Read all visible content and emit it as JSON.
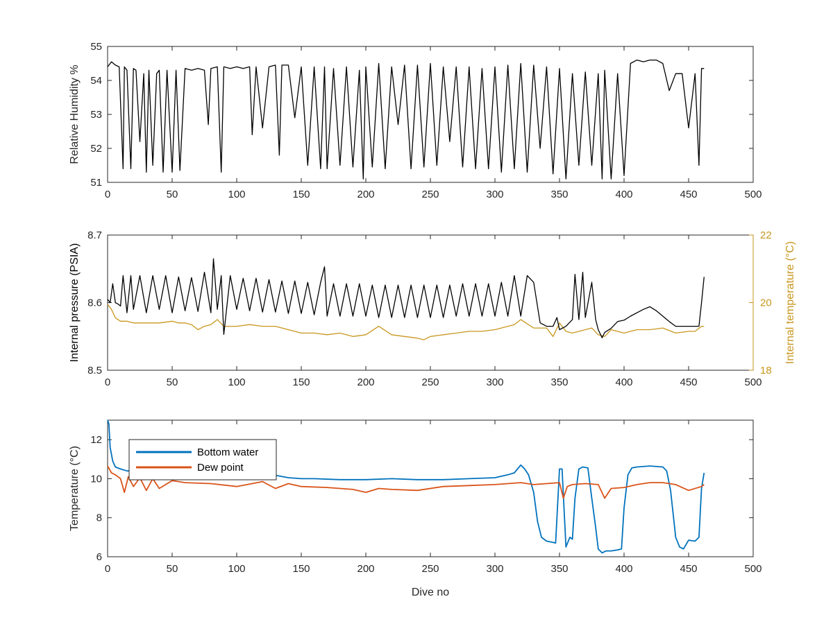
{
  "chart_data": [
    {
      "type": "line",
      "title": "",
      "xlabel": "",
      "ylabel": "Relative Humidity %",
      "xlim": [
        0,
        500
      ],
      "ylim": [
        51,
        55
      ],
      "xticks": [
        0,
        50,
        100,
        150,
        200,
        250,
        300,
        350,
        400,
        450,
        500
      ],
      "yticks": [
        51,
        52,
        53,
        54,
        55
      ],
      "grid": false,
      "series": [
        {
          "color": "#000000",
          "x": [
            0,
            3,
            6,
            9,
            12,
            13,
            15,
            18,
            20,
            22,
            25,
            28,
            30,
            32,
            35,
            38,
            40,
            43,
            46,
            50,
            53,
            56,
            60,
            65,
            70,
            75,
            78,
            80,
            85,
            88,
            90,
            95,
            100,
            105,
            110,
            112,
            115,
            120,
            125,
            130,
            133,
            135,
            140,
            145,
            150,
            155,
            160,
            165,
            168,
            170,
            175,
            180,
            185,
            190,
            195,
            198,
            200,
            205,
            210,
            215,
            220,
            225,
            230,
            235,
            240,
            245,
            250,
            255,
            260,
            265,
            270,
            275,
            280,
            285,
            290,
            295,
            300,
            305,
            310,
            315,
            320,
            325,
            330,
            335,
            340,
            345,
            350,
            355,
            360,
            365,
            370,
            375,
            380,
            383,
            385,
            390,
            395,
            400,
            405,
            410,
            415,
            420,
            425,
            430,
            435,
            440,
            445,
            450,
            455,
            458,
            460,
            462
          ],
          "y": [
            54.4,
            54.55,
            54.45,
            54.4,
            51.4,
            54.4,
            54.3,
            51.4,
            54.35,
            54.3,
            52.2,
            54.2,
            51.3,
            54.3,
            51.5,
            54.2,
            54.3,
            51.3,
            54.3,
            51.3,
            54.3,
            51.35,
            54.35,
            54.3,
            54.35,
            54.3,
            52.7,
            54.35,
            54.4,
            51.3,
            54.4,
            54.35,
            54.4,
            54.35,
            54.4,
            52.4,
            54.4,
            52.6,
            54.4,
            54.45,
            51.8,
            54.45,
            54.45,
            52.9,
            54.4,
            51.5,
            54.4,
            51.4,
            54.4,
            51.4,
            54.35,
            51.5,
            54.4,
            51.45,
            54.3,
            51.1,
            54.4,
            51.45,
            54.5,
            51.4,
            54.4,
            52.7,
            54.45,
            51.4,
            54.45,
            51.45,
            54.5,
            51.5,
            54.4,
            52.2,
            54.4,
            51.45,
            54.4,
            51.4,
            54.35,
            51.4,
            54.4,
            51.3,
            54.45,
            51.4,
            54.5,
            51.3,
            54.45,
            52.0,
            54.4,
            51.25,
            54.35,
            51.1,
            54.2,
            51.5,
            54.25,
            51.5,
            54.2,
            51.1,
            54.3,
            51.1,
            54.2,
            51.2,
            54.5,
            54.6,
            54.55,
            54.6,
            54.6,
            54.5,
            53.7,
            54.2,
            54.2,
            52.6,
            54.2,
            51.5,
            54.35,
            54.35
          ]
        }
      ]
    },
    {
      "type": "line",
      "title": "",
      "xlabel": "",
      "ylabel": "Internal pressure (PSIA)",
      "ylabel_right": "Internal temperature (°C)",
      "xlim": [
        0,
        500
      ],
      "ylim": [
        8.5,
        8.7
      ],
      "ylim_right": [
        18,
        22
      ],
      "xticks": [
        0,
        50,
        100,
        150,
        200,
        250,
        300,
        350,
        400,
        450,
        500
      ],
      "yticks": [
        8.5,
        8.6,
        8.7
      ],
      "yticks_right": [
        18,
        20,
        22
      ],
      "grid": false,
      "series": [
        {
          "axis": "left",
          "color": "#000000",
          "x": [
            0,
            2,
            4,
            6,
            8,
            10,
            12,
            15,
            18,
            20,
            25,
            30,
            35,
            40,
            45,
            50,
            55,
            60,
            65,
            70,
            75,
            80,
            82,
            85,
            88,
            90,
            95,
            100,
            105,
            110,
            115,
            120,
            125,
            130,
            135,
            140,
            145,
            150,
            155,
            160,
            165,
            168,
            170,
            175,
            180,
            185,
            190,
            195,
            200,
            205,
            210,
            215,
            220,
            225,
            230,
            235,
            240,
            245,
            250,
            255,
            260,
            265,
            270,
            275,
            280,
            285,
            290,
            295,
            300,
            305,
            310,
            315,
            320,
            325,
            330,
            335,
            340,
            345,
            348,
            350,
            355,
            360,
            362,
            365,
            368,
            370,
            375,
            378,
            380,
            383,
            385,
            390,
            395,
            400,
            405,
            410,
            415,
            420,
            425,
            430,
            435,
            440,
            445,
            450,
            455,
            458,
            460,
            462
          ],
          "y": [
            8.605,
            8.6,
            8.628,
            8.6,
            8.598,
            8.595,
            8.64,
            8.585,
            8.64,
            8.59,
            8.64,
            8.585,
            8.64,
            8.59,
            8.64,
            8.585,
            8.638,
            8.588,
            8.637,
            8.587,
            8.645,
            8.585,
            8.665,
            8.59,
            8.64,
            8.553,
            8.64,
            8.59,
            8.636,
            8.588,
            8.636,
            8.586,
            8.634,
            8.586,
            8.632,
            8.584,
            8.632,
            8.584,
            8.63,
            8.582,
            8.63,
            8.653,
            8.58,
            8.628,
            8.58,
            8.628,
            8.58,
            8.628,
            8.58,
            8.626,
            8.578,
            8.626,
            8.578,
            8.626,
            8.578,
            8.626,
            8.578,
            8.626,
            8.578,
            8.626,
            8.578,
            8.626,
            8.58,
            8.628,
            8.58,
            8.628,
            8.58,
            8.628,
            8.58,
            8.63,
            8.58,
            8.64,
            8.58,
            8.64,
            8.63,
            8.57,
            8.565,
            8.565,
            8.578,
            8.56,
            8.565,
            8.575,
            8.642,
            8.575,
            8.645,
            8.578,
            8.63,
            8.575,
            8.56,
            8.548,
            8.556,
            8.562,
            8.572,
            8.574,
            8.58,
            8.585,
            8.59,
            8.594,
            8.588,
            8.58,
            8.572,
            8.565,
            8.565,
            8.565,
            8.565,
            8.565,
            8.6,
            8.638
          ]
        },
        {
          "axis": "right",
          "color": "#C8961E",
          "x": [
            0,
            3,
            6,
            10,
            15,
            20,
            30,
            40,
            50,
            55,
            60,
            65,
            70,
            75,
            80,
            85,
            90,
            95,
            100,
            110,
            120,
            130,
            140,
            150,
            160,
            170,
            180,
            190,
            200,
            210,
            220,
            230,
            240,
            245,
            250,
            260,
            270,
            280,
            290,
            300,
            310,
            315,
            320,
            330,
            340,
            345,
            350,
            355,
            360,
            370,
            375,
            380,
            385,
            390,
            400,
            410,
            420,
            430,
            440,
            450,
            455,
            460,
            462
          ],
          "y": [
            19.95,
            19.8,
            19.55,
            19.45,
            19.45,
            19.4,
            19.4,
            19.4,
            19.45,
            19.4,
            19.4,
            19.35,
            19.2,
            19.3,
            19.35,
            19.5,
            19.3,
            19.3,
            19.3,
            19.35,
            19.3,
            19.3,
            19.2,
            19.1,
            19.1,
            19.05,
            19.1,
            19.0,
            19.05,
            19.3,
            19.05,
            19.0,
            18.95,
            18.9,
            19.0,
            19.05,
            19.1,
            19.15,
            19.15,
            19.2,
            19.3,
            19.35,
            19.5,
            19.25,
            19.25,
            19.0,
            19.4,
            19.15,
            19.1,
            19.2,
            19.25,
            19.05,
            19.0,
            19.2,
            19.1,
            19.2,
            19.2,
            19.25,
            19.1,
            19.15,
            19.15,
            19.3,
            19.3
          ]
        }
      ]
    },
    {
      "type": "line",
      "title": "",
      "xlabel": "Dive no",
      "ylabel": "Temperature (°C)",
      "xlim": [
        0,
        500
      ],
      "ylim": [
        6,
        13
      ],
      "xticks": [
        0,
        50,
        100,
        150,
        200,
        250,
        300,
        350,
        400,
        450,
        500
      ],
      "yticks": [
        6,
        8,
        10,
        12
      ],
      "grid": false,
      "legend": "top-left",
      "series": [
        {
          "name": "Bottom water",
          "color": "#0072BD",
          "x": [
            0,
            1,
            2,
            4,
            6,
            10,
            15,
            20,
            30,
            40,
            50,
            60,
            80,
            100,
            120,
            140,
            150,
            160,
            180,
            200,
            220,
            240,
            260,
            280,
            300,
            310,
            315,
            320,
            323,
            326,
            330,
            333,
            336,
            340,
            344,
            347,
            350,
            352,
            355,
            358,
            360,
            362,
            365,
            368,
            372,
            375,
            378,
            380,
            383,
            386,
            390,
            395,
            398,
            400,
            403,
            406,
            410,
            420,
            430,
            433,
            436,
            438,
            440,
            443,
            446,
            450,
            455,
            458,
            460,
            462
          ],
          "y": [
            13.0,
            12.8,
            11.6,
            10.9,
            10.6,
            10.5,
            10.4,
            10.4,
            10.35,
            10.4,
            10.35,
            10.35,
            10.3,
            10.3,
            10.3,
            10.05,
            10.0,
            10.0,
            9.95,
            9.95,
            10.0,
            9.95,
            9.95,
            10.0,
            10.05,
            10.2,
            10.3,
            10.7,
            10.5,
            10.2,
            9.3,
            7.8,
            7.0,
            6.8,
            6.75,
            6.7,
            10.5,
            10.5,
            6.5,
            7.0,
            6.9,
            9.0,
            10.5,
            10.6,
            10.55,
            9.0,
            7.5,
            6.4,
            6.2,
            6.3,
            6.3,
            6.35,
            6.4,
            8.5,
            10.2,
            10.55,
            10.6,
            10.65,
            10.6,
            10.4,
            9.4,
            8.2,
            7.0,
            6.5,
            6.4,
            6.85,
            6.8,
            7.0,
            9.5,
            10.3
          ]
        },
        {
          "name": "Dew point",
          "color": "#D95319",
          "x": [
            0,
            3,
            6,
            10,
            13,
            16,
            20,
            25,
            30,
            35,
            40,
            50,
            60,
            80,
            100,
            120,
            130,
            140,
            150,
            170,
            190,
            200,
            210,
            220,
            240,
            260,
            280,
            300,
            310,
            320,
            330,
            340,
            350,
            353,
            356,
            360,
            370,
            380,
            385,
            390,
            400,
            410,
            420,
            430,
            440,
            450,
            460,
            462
          ],
          "y": [
            10.65,
            10.3,
            10.2,
            10.0,
            9.3,
            10.1,
            9.6,
            10.05,
            9.4,
            10.0,
            9.5,
            9.9,
            9.8,
            9.75,
            9.6,
            9.85,
            9.5,
            9.75,
            9.6,
            9.55,
            9.45,
            9.3,
            9.5,
            9.45,
            9.4,
            9.6,
            9.65,
            9.7,
            9.75,
            9.8,
            9.7,
            9.75,
            9.8,
            9.0,
            9.6,
            9.7,
            9.75,
            9.7,
            9.0,
            9.5,
            9.55,
            9.7,
            9.8,
            9.8,
            9.7,
            9.4,
            9.6,
            9.7
          ]
        }
      ]
    }
  ]
}
